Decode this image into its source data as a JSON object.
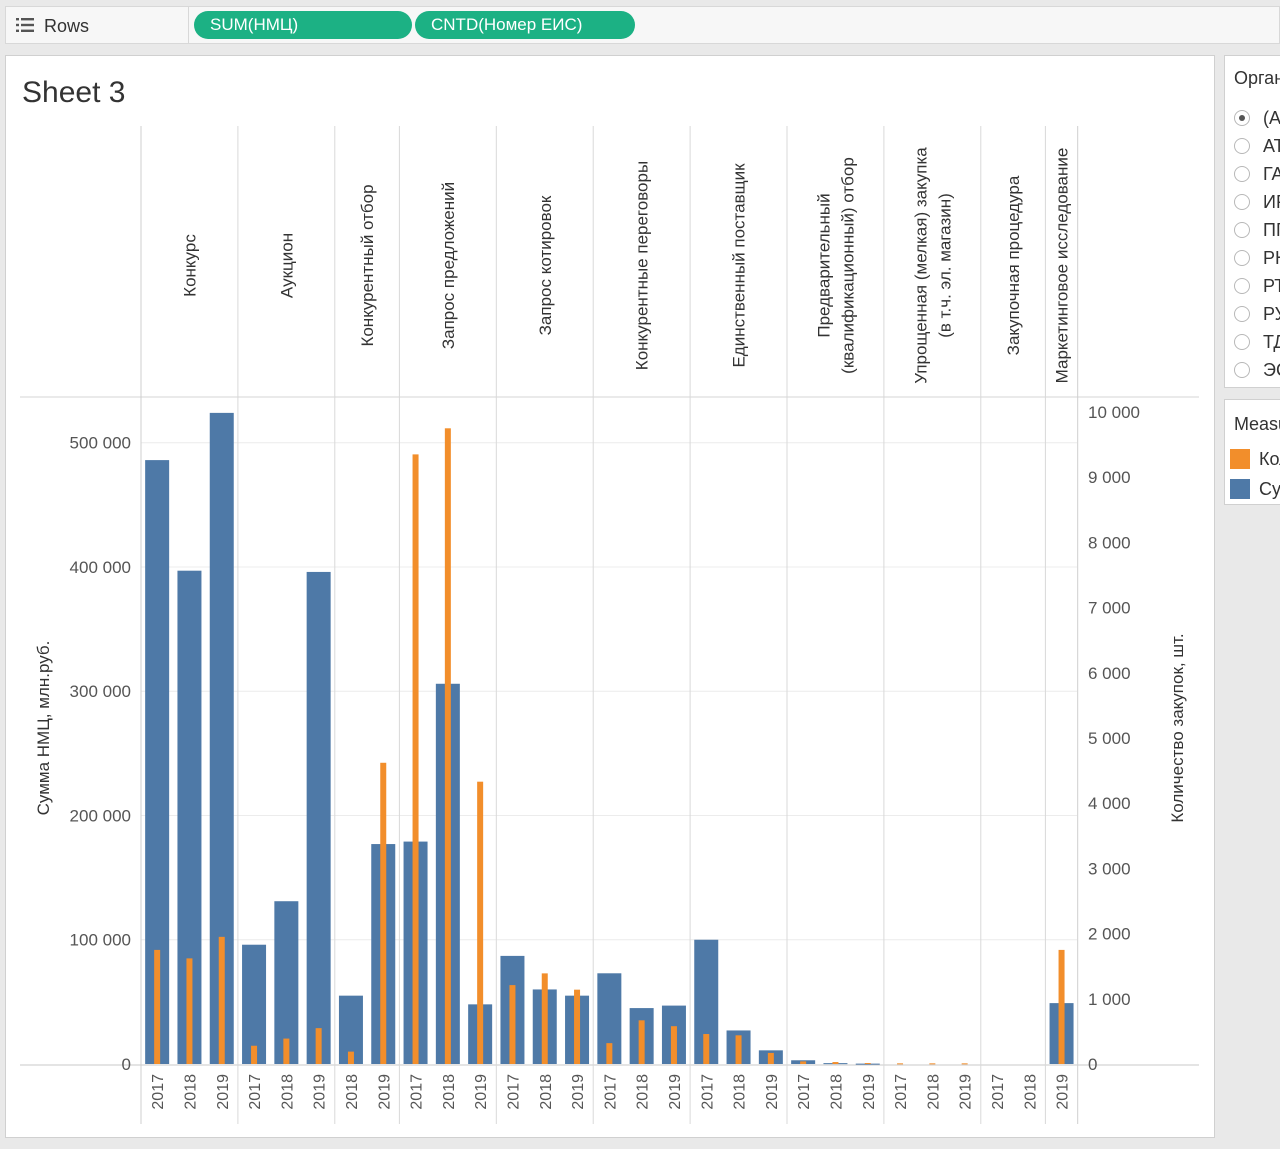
{
  "shelf": {
    "rows_label": "Rows",
    "pills": [
      "SUM(НМЦ)",
      "CNTD(Номер ЕИС)"
    ]
  },
  "sheet": {
    "title": "Sheet 3"
  },
  "filter": {
    "title": "Организация",
    "options": [
      {
        "label": "(All)",
        "selected": true
      },
      {
        "label": "АТ",
        "selected": false
      },
      {
        "label": "ГА",
        "selected": false
      },
      {
        "label": "ИР",
        "selected": false
      },
      {
        "label": "ПГ",
        "selected": false
      },
      {
        "label": "РН",
        "selected": false
      },
      {
        "label": "РТ",
        "selected": false
      },
      {
        "label": "РУ",
        "selected": false
      },
      {
        "label": "ТД",
        "selected": false
      },
      {
        "label": "ЭС",
        "selected": false
      }
    ]
  },
  "legend": {
    "title": "Measure Names",
    "items": [
      {
        "label": "Количество закупок, шт.",
        "color": "#f28e2b"
      },
      {
        "label": "Сумма НМЦ, млн.руб.",
        "color": "#4e79a7"
      }
    ]
  },
  "chart_data": {
    "type": "bar",
    "left_axis": {
      "label": "Сумма НМЦ, млн.руб.",
      "range": [
        0,
        540000
      ],
      "ticks": [
        0,
        100000,
        200000,
        300000,
        400000,
        500000
      ],
      "tick_labels": [
        "0",
        "100 000",
        "200 000",
        "300 000",
        "400 000",
        "500 000"
      ]
    },
    "right_axis": {
      "label": "Количество закупок, шт.",
      "range": [
        0,
        10000
      ],
      "ticks": [
        0,
        1000,
        2000,
        3000,
        4000,
        5000,
        6000,
        7000,
        8000,
        9000,
        10000
      ],
      "tick_labels": [
        "0",
        "1 000",
        "2 000",
        "3 000",
        "4 000",
        "5 000",
        "6 000",
        "7 000",
        "8 000",
        "9 000",
        "10 000"
      ]
    },
    "groups": [
      {
        "name": "Конкурс",
        "years": [
          "2017",
          "2018",
          "2019"
        ],
        "sum": [
          486000,
          397000,
          524000
        ],
        "count": [
          1750,
          1620,
          1950
        ]
      },
      {
        "name": "Аукцион",
        "years": [
          "2017",
          "2018",
          "2019"
        ],
        "sum": [
          96000,
          131000,
          396000
        ],
        "count": [
          280,
          390,
          550
        ]
      },
      {
        "name": "Конкурентный отбор",
        "years": [
          "2018",
          "2019"
        ],
        "sum": [
          55000,
          177000
        ],
        "count": [
          190,
          4620
        ]
      },
      {
        "name": "Запрос предложений",
        "years": [
          "2017",
          "2018",
          "2019"
        ],
        "sum": [
          179000,
          306000,
          48000
        ],
        "count": [
          9350,
          9750,
          4330
        ]
      },
      {
        "name": "Запрос котировок",
        "years": [
          "2017",
          "2018",
          "2019"
        ],
        "sum": [
          87000,
          60000,
          55000
        ],
        "count": [
          1210,
          1390,
          1140
        ]
      },
      {
        "name": "Конкурентные переговоры",
        "years": [
          "2017",
          "2018",
          "2019"
        ],
        "sum": [
          73000,
          45000,
          47000
        ],
        "count": [
          320,
          670,
          580
        ]
      },
      {
        "name": "Единственный поставщик",
        "years": [
          "2017",
          "2018",
          "2019"
        ],
        "sum": [
          100000,
          27000,
          11000
        ],
        "count": [
          460,
          440,
          170
        ]
      },
      {
        "name": "Предварительный (квалификационный) отбор",
        "years": [
          "2017",
          "2018",
          "2019"
        ],
        "sum": [
          3000,
          700,
          300
        ],
        "count": [
          40,
          30,
          15
        ]
      },
      {
        "name": "Упрощенная (мелкая) закупка (в т.ч. эл. магазин)",
        "years": [
          "2017",
          "2018",
          "2019"
        ],
        "sum": [
          0,
          0,
          0
        ],
        "count": [
          10,
          10,
          10
        ]
      },
      {
        "name": "Закупочная процедура",
        "years": [
          "2017",
          "2018"
        ],
        "sum": [
          0,
          0
        ],
        "count": [
          0,
          0
        ]
      },
      {
        "name": "Маркетинговое исследование",
        "years": [
          "2019"
        ],
        "sum": [
          49000
        ],
        "count": [
          1750
        ]
      }
    ],
    "header_lines": [
      [
        "Конкурс"
      ],
      [
        "Аукцион"
      ],
      [
        "Конкурентный отбор"
      ],
      [
        "Запрос предложений"
      ],
      [
        "Запрос котировок"
      ],
      [
        "Конкурентные переговоры"
      ],
      [
        "Единственный поставщик"
      ],
      [
        "Предварительный",
        "(квалификационный) отбор"
      ],
      [
        "Упрощенная (мелкая) закупка",
        "(в т.ч. эл. магазин)"
      ],
      [
        "Закупочная процедура"
      ],
      [
        "Маркетинговое исследование"
      ]
    ],
    "grid": true
  }
}
